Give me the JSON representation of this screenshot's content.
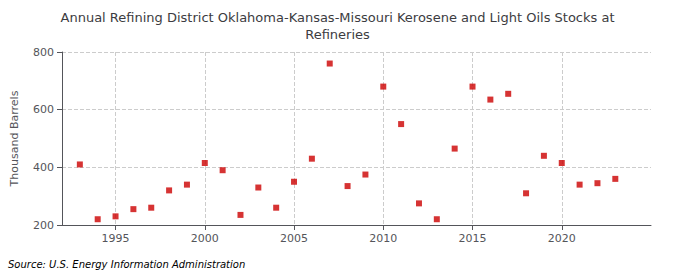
{
  "chart_data": {
    "type": "scatter",
    "title": "Annual Refining District Oklahoma-Kansas-Missouri Kerosene and Light Oils Stocks at\nRefineries",
    "ylabel": "Thousand Barrels",
    "source": "Source: U.S. Energy Information Administration",
    "x": [
      1993,
      1994,
      1995,
      1996,
      1997,
      1998,
      1999,
      2000,
      2001,
      2002,
      2003,
      2004,
      2005,
      2006,
      2007,
      2008,
      2009,
      2010,
      2011,
      2012,
      2013,
      2014,
      2015,
      2016,
      2017,
      2018,
      2019,
      2020,
      2021,
      2022,
      2023
    ],
    "values": [
      410,
      220,
      230,
      255,
      260,
      320,
      340,
      415,
      390,
      235,
      330,
      260,
      350,
      430,
      760,
      335,
      375,
      680,
      550,
      275,
      220,
      465,
      680,
      635,
      655,
      310,
      440,
      415,
      340,
      345,
      360
    ],
    "color": "#cc0000",
    "marker": "square",
    "xlim": [
      1992,
      2025
    ],
    "xticks": [
      1995,
      2000,
      2005,
      2010,
      2015,
      2020
    ],
    "ylim": [
      200,
      800
    ],
    "yticks": [
      200,
      400,
      600,
      800
    ],
    "grid": true
  }
}
